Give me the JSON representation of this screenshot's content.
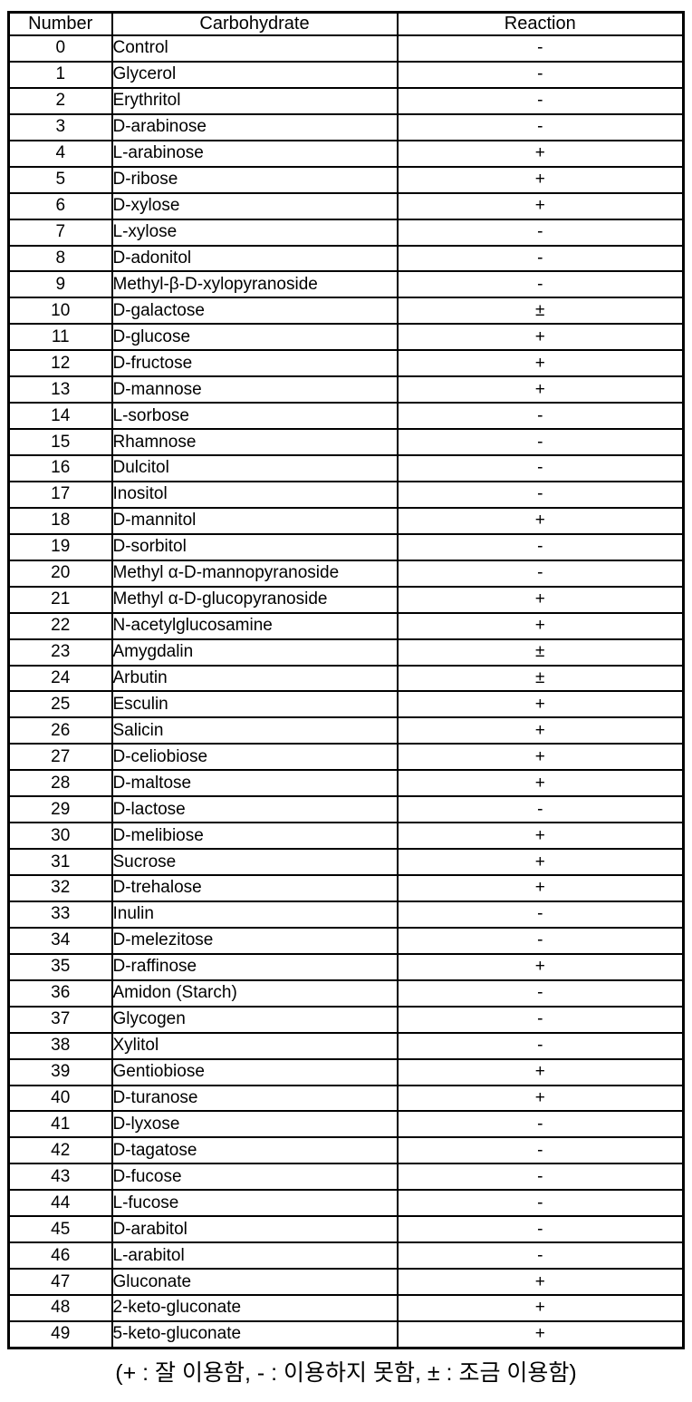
{
  "colors": {
    "background": "#ffffff",
    "text": "#000000",
    "border": "#000000"
  },
  "table": {
    "headers": {
      "number": "Number",
      "carbohydrate": "Carbohydrate",
      "reaction": "Reaction"
    },
    "rows": [
      {
        "number": "0",
        "carbohydrate": "Control",
        "reaction": "-"
      },
      {
        "number": "1",
        "carbohydrate": "Glycerol",
        "reaction": "-"
      },
      {
        "number": "2",
        "carbohydrate": "Erythritol",
        "reaction": "-"
      },
      {
        "number": "3",
        "carbohydrate": "D-arabinose",
        "reaction": "-"
      },
      {
        "number": "4",
        "carbohydrate": "L-arabinose",
        "reaction": "+"
      },
      {
        "number": "5",
        "carbohydrate": "D-ribose",
        "reaction": "+"
      },
      {
        "number": "6",
        "carbohydrate": "D-xylose",
        "reaction": "+"
      },
      {
        "number": "7",
        "carbohydrate": "L-xylose",
        "reaction": "-"
      },
      {
        "number": "8",
        "carbohydrate": "D-adonitol",
        "reaction": "-"
      },
      {
        "number": "9",
        "carbohydrate": "Methyl-β-D-xylopyranoside",
        "reaction": "-"
      },
      {
        "number": "10",
        "carbohydrate": "D-galactose",
        "reaction": "±"
      },
      {
        "number": "11",
        "carbohydrate": "D-glucose",
        "reaction": "+"
      },
      {
        "number": "12",
        "carbohydrate": "D-fructose",
        "reaction": "+"
      },
      {
        "number": "13",
        "carbohydrate": "D-mannose",
        "reaction": "+"
      },
      {
        "number": "14",
        "carbohydrate": "L-sorbose",
        "reaction": "-"
      },
      {
        "number": "15",
        "carbohydrate": "Rhamnose",
        "reaction": "-"
      },
      {
        "number": "16",
        "carbohydrate": "Dulcitol",
        "reaction": "-"
      },
      {
        "number": "17",
        "carbohydrate": "Inositol",
        "reaction": "-"
      },
      {
        "number": "18",
        "carbohydrate": "D-mannitol",
        "reaction": "+"
      },
      {
        "number": "19",
        "carbohydrate": "D-sorbitol",
        "reaction": "-"
      },
      {
        "number": "20",
        "carbohydrate": "Methyl α-D-mannopyranoside",
        "reaction": "-"
      },
      {
        "number": "21",
        "carbohydrate": "Methyl α-D-glucopyranoside",
        "reaction": "+"
      },
      {
        "number": "22",
        "carbohydrate": "N-acetylglucosamine",
        "reaction": "+"
      },
      {
        "number": "23",
        "carbohydrate": "Amygdalin",
        "reaction": "±"
      },
      {
        "number": "24",
        "carbohydrate": "Arbutin",
        "reaction": "±"
      },
      {
        "number": "25",
        "carbohydrate": "Esculin",
        "reaction": "+"
      },
      {
        "number": "26",
        "carbohydrate": "Salicin",
        "reaction": "+"
      },
      {
        "number": "27",
        "carbohydrate": "D-celiobiose",
        "reaction": "+"
      },
      {
        "number": "28",
        "carbohydrate": "D-maltose",
        "reaction": "+"
      },
      {
        "number": "29",
        "carbohydrate": "D-lactose",
        "reaction": "-"
      },
      {
        "number": "30",
        "carbohydrate": "D-melibiose",
        "reaction": "+"
      },
      {
        "number": "31",
        "carbohydrate": "Sucrose",
        "reaction": "+"
      },
      {
        "number": "32",
        "carbohydrate": "D-trehalose",
        "reaction": "+"
      },
      {
        "number": "33",
        "carbohydrate": "Inulin",
        "reaction": "-"
      },
      {
        "number": "34",
        "carbohydrate": "D-melezitose",
        "reaction": "-"
      },
      {
        "number": "35",
        "carbohydrate": "D-raffinose",
        "reaction": "+"
      },
      {
        "number": "36",
        "carbohydrate": "Amidon (Starch)",
        "reaction": "-"
      },
      {
        "number": "37",
        "carbohydrate": "Glycogen",
        "reaction": "-"
      },
      {
        "number": "38",
        "carbohydrate": "Xylitol",
        "reaction": "-"
      },
      {
        "number": "39",
        "carbohydrate": "Gentiobiose",
        "reaction": "+"
      },
      {
        "number": "40",
        "carbohydrate": "D-turanose",
        "reaction": "+"
      },
      {
        "number": "41",
        "carbohydrate": "D-lyxose",
        "reaction": "-"
      },
      {
        "number": "42",
        "carbohydrate": "D-tagatose",
        "reaction": "-"
      },
      {
        "number": "43",
        "carbohydrate": "D-fucose",
        "reaction": "-"
      },
      {
        "number": "44",
        "carbohydrate": "L-fucose",
        "reaction": "-"
      },
      {
        "number": "45",
        "carbohydrate": "D-arabitol",
        "reaction": "-"
      },
      {
        "number": "46",
        "carbohydrate": "L-arabitol",
        "reaction": "-"
      },
      {
        "number": "47",
        "carbohydrate": "Gluconate",
        "reaction": "+"
      },
      {
        "number": "48",
        "carbohydrate": "2-keto-gluconate",
        "reaction": "+"
      },
      {
        "number": "49",
        "carbohydrate": "5-keto-gluconate",
        "reaction": "+"
      }
    ]
  },
  "legend": {
    "text": "(+ : 잘 이용함, - : 이용하지 못함, ± : 조금 이용함)"
  }
}
